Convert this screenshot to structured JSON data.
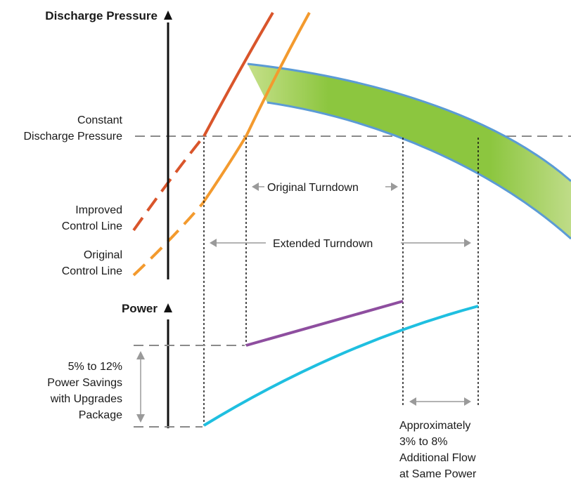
{
  "axes": {
    "pressure_label": "Discharge Pressure",
    "power_label": "Power"
  },
  "labels": {
    "constant_pressure": [
      "Constant",
      "Discharge Pressure"
    ],
    "improved_control": [
      "Improved",
      "Control Line"
    ],
    "original_control": [
      "Original",
      "Control Line"
    ],
    "original_turndown": "Original Turndown",
    "extended_turndown": "Extended Turndown",
    "power_savings": [
      "5% to 12%",
      "Power Savings",
      "with Upgrades",
      "Package"
    ],
    "additional_flow": [
      "Approximately",
      "3% to 8%",
      "Additional Flow",
      "at Same Power"
    ]
  },
  "colors": {
    "improved_line": "#d9552b",
    "original_line": "#f39a2e",
    "band_fill": "#8cc63f",
    "band_edge": "#5b9bd5",
    "original_power": "#8e4e9f",
    "extended_power": "#1fbfe0",
    "dash_gray": "#8a8a8a",
    "arrow_gray": "#9a9a9a",
    "axis": "#111111"
  }
}
